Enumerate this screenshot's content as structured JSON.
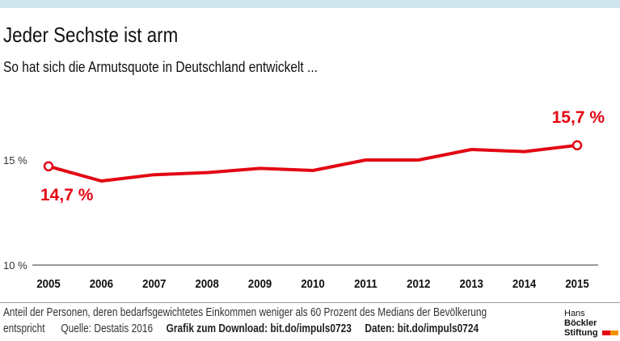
{
  "header": {
    "title": "Jeder Sechste ist arm",
    "subtitle": "So hat sich die Armutsquote in Deutschland entwickelt ..."
  },
  "chart_data": {
    "type": "line",
    "title": "Jeder Sechste ist arm",
    "subtitle": "So hat sich die Armutsquote in Deutschland entwickelt ...",
    "x": [
      "2005",
      "2006",
      "2007",
      "2008",
      "2009",
      "2010",
      "2011",
      "2012",
      "2013",
      "2014",
      "2015"
    ],
    "series": [
      {
        "name": "Armutsquote",
        "values": [
          14.7,
          14.0,
          14.3,
          14.4,
          14.6,
          14.5,
          15.0,
          15.0,
          15.5,
          15.4,
          15.7
        ],
        "color": "#e30613"
      }
    ],
    "ylim": [
      10,
      17
    ],
    "yticks": [
      {
        "value": 10,
        "label": "10 %"
      },
      {
        "value": 15,
        "label": "15 %"
      }
    ],
    "annotations": [
      {
        "x": "2005",
        "label": "14,7 %"
      },
      {
        "x": "2015",
        "label": "15,7 %"
      }
    ],
    "xlabel": "",
    "ylabel": ""
  },
  "footer": {
    "line1": "Anteil der Personen, deren bedarfsgewichtetes Einkommen weniger als 60 Prozent des Medians der Bevölkerung",
    "line2a": "entspricht",
    "source": "Quelle: Destatis 2016",
    "download": "Grafik zum Download: bit.do/impuls0723",
    "data": "Daten: bit.do/impuls0724"
  },
  "logo": {
    "line1a": "Hans",
    "line1b": "Böckler",
    "line2": "Stiftung"
  },
  "colors": {
    "accent": "#e30613",
    "logo_orange": "#f39200"
  }
}
